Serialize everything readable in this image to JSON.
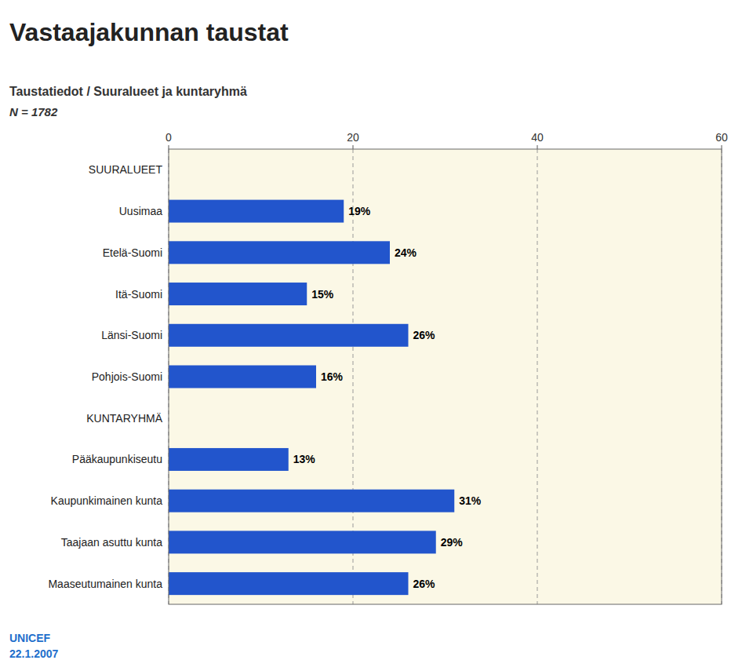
{
  "chart_data": {
    "type": "bar",
    "orientation": "horizontal",
    "title": "Vastaajakunnan taustat",
    "subtitle": "Taustatiedot / Suuralueet ja kuntaryhmä",
    "annotations": [
      "N = 1782",
      "UNICEF",
      "22.1.2007"
    ],
    "categories": [
      "SUURALUEET",
      "Uusimaa",
      "Etelä-Suomi",
      "Itä-Suomi",
      "Länsi-Suomi",
      "Pohjois-Suomi",
      "KUNTARYHMÄ",
      "Pääkaupunkiseutu",
      "Kaupunkimainen kunta",
      "Taajaan asuttu kunta",
      "Maaseutumainen kunta"
    ],
    "values": [
      null,
      19,
      24,
      15,
      26,
      16,
      null,
      13,
      31,
      29,
      26
    ],
    "value_labels": [
      null,
      "19%",
      "24%",
      "15%",
      "26%",
      "16%",
      null,
      "13%",
      "31%",
      "29%",
      "26%"
    ],
    "data_labels": true,
    "color": "#2255CC",
    "xlim": [
      0,
      60
    ],
    "xticks": [
      0,
      20,
      40,
      60
    ],
    "grid": true
  }
}
